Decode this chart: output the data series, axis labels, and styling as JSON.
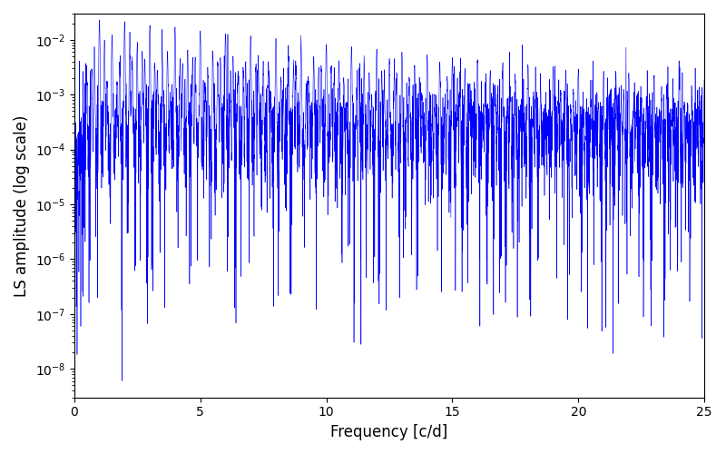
{
  "xlabel": "Frequency [c/d]",
  "ylabel": "LS amplitude (log scale)",
  "line_color": "blue",
  "xlim": [
    0,
    25
  ],
  "ylim": [
    3e-09,
    0.03
  ],
  "figsize": [
    8.0,
    5.0
  ],
  "dpi": 100,
  "freq_max": 25.0,
  "n_points": 5000,
  "base_amplitude": 0.00015,
  "random_seed": 17
}
